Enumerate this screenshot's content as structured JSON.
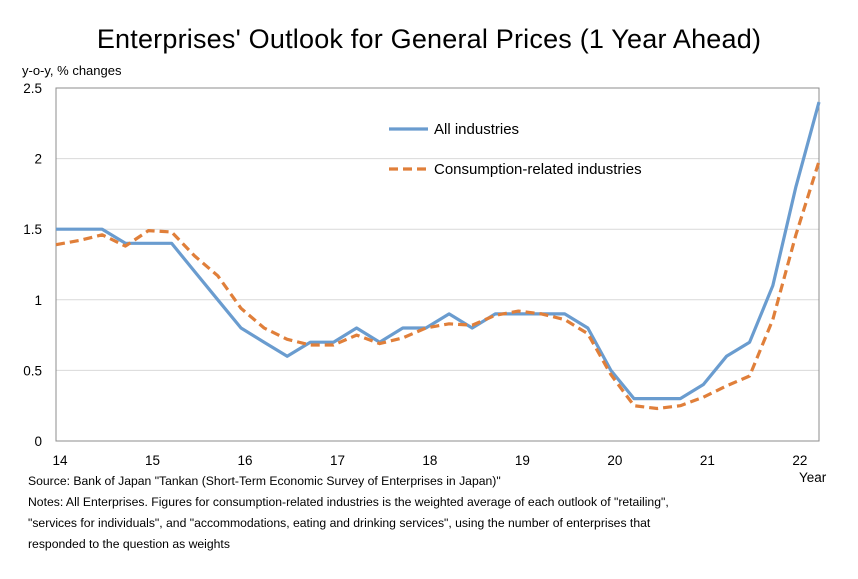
{
  "chart_data": {
    "type": "line",
    "title": "Enterprises' Outlook for General Prices (1 Year Ahead)",
    "ylabel": "y-o-y, % changes",
    "xlabel": "Year",
    "ylim": [
      0,
      2.5
    ],
    "xlim": [
      2014.0,
      2022.25
    ],
    "yticks": [
      "0",
      "0.5",
      "1",
      "1.5",
      "2",
      "2.5"
    ],
    "xticks": [
      "14",
      "15",
      "16",
      "17",
      "18",
      "19",
      "20",
      "21",
      "22"
    ],
    "grid": "horizontal",
    "legend_position": "top-center",
    "series": [
      {
        "name": "All industries",
        "color": "#6a9ccf",
        "style": "solid",
        "x": [
          2014.0,
          2014.25,
          2014.5,
          2014.75,
          2015.0,
          2015.25,
          2015.5,
          2015.75,
          2016.0,
          2016.25,
          2016.5,
          2016.75,
          2017.0,
          2017.25,
          2017.5,
          2017.75,
          2018.0,
          2018.25,
          2018.5,
          2018.75,
          2019.0,
          2019.25,
          2019.5,
          2019.75,
          2020.0,
          2020.25,
          2020.5,
          2020.75,
          2021.0,
          2021.25,
          2021.5,
          2021.75,
          2022.0,
          2022.25
        ],
        "values": [
          1.5,
          1.5,
          1.5,
          1.4,
          1.4,
          1.4,
          1.2,
          1.0,
          0.8,
          0.7,
          0.6,
          0.7,
          0.7,
          0.8,
          0.7,
          0.8,
          0.8,
          0.9,
          0.8,
          0.9,
          0.9,
          0.9,
          0.9,
          0.8,
          0.5,
          0.3,
          0.3,
          0.3,
          0.4,
          0.6,
          0.7,
          1.1,
          1.8,
          2.4
        ]
      },
      {
        "name": "Consumption-related industries",
        "color": "#e07f3a",
        "style": "dashed",
        "x": [
          2014.0,
          2014.25,
          2014.5,
          2014.75,
          2015.0,
          2015.25,
          2015.5,
          2015.75,
          2016.0,
          2016.25,
          2016.5,
          2016.75,
          2017.0,
          2017.25,
          2017.5,
          2017.75,
          2018.0,
          2018.25,
          2018.5,
          2018.75,
          2019.0,
          2019.25,
          2019.5,
          2019.75,
          2020.0,
          2020.25,
          2020.5,
          2020.75,
          2021.0,
          2021.25,
          2021.5,
          2021.75,
          2022.0,
          2022.25
        ],
        "values": [
          1.39,
          1.42,
          1.46,
          1.38,
          1.49,
          1.48,
          1.31,
          1.17,
          0.94,
          0.8,
          0.72,
          0.68,
          0.68,
          0.75,
          0.69,
          0.73,
          0.8,
          0.83,
          0.82,
          0.89,
          0.92,
          0.9,
          0.86,
          0.76,
          0.47,
          0.25,
          0.23,
          0.25,
          0.31,
          0.39,
          0.46,
          0.86,
          1.46,
          1.98
        ]
      }
    ]
  },
  "notes": {
    "source": "Source: Bank of Japan \"Tankan (Short-Term Economic Survey of Enterprises in Japan)\"",
    "line1": "Notes: All Enterprises. Figures for consumption-related industries is the weighted average of each outlook of \"retailing\",",
    "line2": "\"services for individuals\", and \"accommodations, eating and drinking services\", using the number of enterprises that",
    "line3": "responded to the question as weights"
  }
}
